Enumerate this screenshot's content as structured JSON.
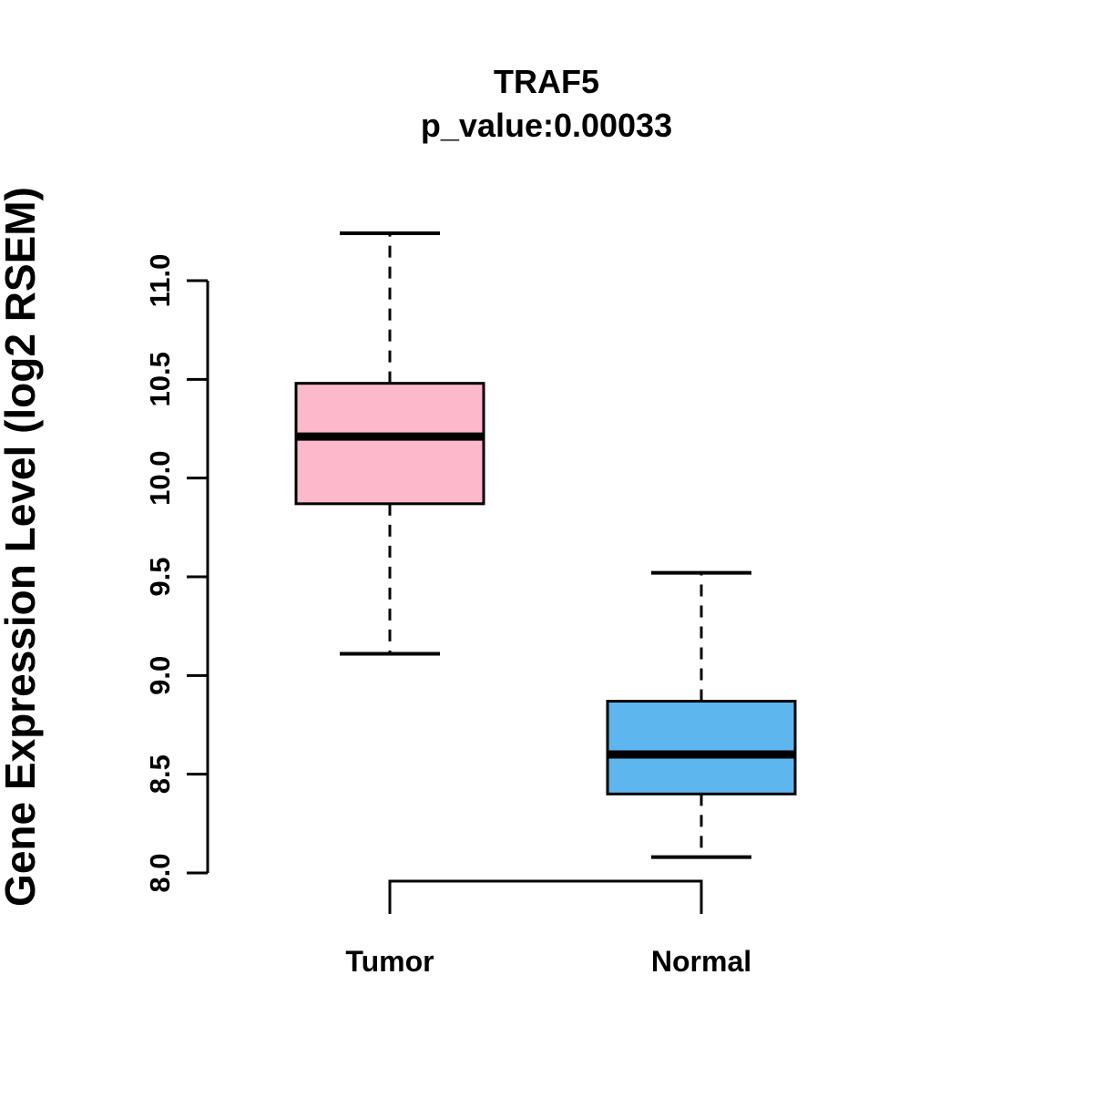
{
  "chart_data": {
    "type": "boxplot",
    "title": "TRAF5",
    "subtitle": "p_value:0.00033",
    "ylabel": "Gene Expression Level (log2 RSEM)",
    "xlabel": "",
    "ylim": [
      8.0,
      11.0
    ],
    "yticks": [
      "8.0",
      "8.5",
      "9.0",
      "9.5",
      "10.0",
      "10.5",
      "11.0"
    ],
    "grid": false,
    "legend": "none",
    "colors": {
      "tumor_fill": "#FDB8CB",
      "normal_fill": "#5EB6EF",
      "stroke": "#000000",
      "background": "#FFFFFF"
    },
    "groups": [
      {
        "label": "Tumor",
        "color": "#FDB8CB",
        "stats": {
          "lower_whisker": 9.11,
          "q1": 9.87,
          "median": 10.21,
          "q3": 10.48,
          "upper_whisker": 11.24
        }
      },
      {
        "label": "Normal",
        "color": "#5EB6EF",
        "stats": {
          "lower_whisker": 8.08,
          "q1": 8.4,
          "median": 8.6,
          "q3": 8.87,
          "upper_whisker": 9.52
        }
      }
    ],
    "comparison_bracket": {
      "between": [
        "Tumor",
        "Normal"
      ]
    }
  }
}
